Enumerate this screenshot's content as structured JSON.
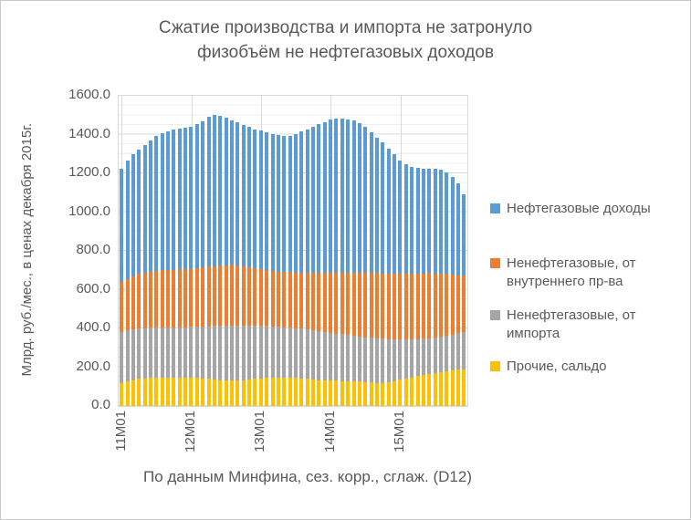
{
  "title": {
    "line1": "Сжатие производства и импорта не затронуло",
    "line2": "физобъём не нефтегазовых доходов"
  },
  "y_axis": {
    "title": "Млрд. руб./мес., в ценах декабря 2015г.",
    "tick_labels": [
      "0.0",
      "200.0",
      "400.0",
      "600.0",
      "800.0",
      "1000.0",
      "1200.0",
      "1400.0",
      "1600.0"
    ]
  },
  "x_axis": {
    "title": "По данным Минфина, сез. корр., сглаж. (D12)",
    "tick_labels": [
      "11M01",
      "12M01",
      "13M01",
      "14M01",
      "15M01"
    ]
  },
  "chart_data": {
    "type": "bar",
    "stacked": true,
    "title": "Сжатие производства и импорта не затронуло физобъём не нефтегазовых доходов",
    "ylabel": "Млрд. руб./мес., в ценах декабря 2015г.",
    "xlabel": "По данным Минфина, сез. корр., сглаж. (D12)",
    "ylim": [
      0,
      1600
    ],
    "y_major_step": 200,
    "y_minor_step": 50,
    "grid": true,
    "legend_position": "right",
    "categories": [
      "11M01",
      "11M02",
      "11M03",
      "11M04",
      "11M05",
      "11M06",
      "11M07",
      "11M08",
      "11M09",
      "11M10",
      "11M11",
      "11M12",
      "12M01",
      "12M02",
      "12M03",
      "12M04",
      "12M05",
      "12M06",
      "12M07",
      "12M08",
      "12M09",
      "12M10",
      "12M11",
      "12M12",
      "13M01",
      "13M02",
      "13M03",
      "13M04",
      "13M05",
      "13M06",
      "13M07",
      "13M08",
      "13M09",
      "13M10",
      "13M11",
      "13M12",
      "14M01",
      "14M02",
      "14M03",
      "14M04",
      "14M05",
      "14M06",
      "14M07",
      "14M08",
      "14M09",
      "14M10",
      "14M11",
      "14M12",
      "15M01",
      "15M02",
      "15M03",
      "15M04",
      "15M05",
      "15M06",
      "15M07",
      "15M08",
      "15M09",
      "15M10",
      "15M11",
      "15M12"
    ],
    "series": [
      {
        "name": "Нефтегазовые доходы",
        "color": "#5B9BD5",
        "values": [
          583,
          610,
          627,
          640,
          656,
          676,
          695,
          705,
          713,
          721,
          726,
          730,
          733,
          744,
          755,
          771,
          778,
          772,
          760,
          747,
          736,
          728,
          722,
          717,
          715,
          710,
          705,
          702,
          701,
          704,
          715,
          727,
          739,
          754,
          766,
          780,
          793,
          796,
          796,
          791,
          785,
          772,
          751,
          724,
          700,
          674,
          644,
          615,
          584,
          564,
          551,
          544,
          539,
          537,
          538,
          535,
          524,
          505,
          475,
          418
        ]
      },
      {
        "name": "Ненефтегазовые, от внутреннего пр-ва",
        "color": "#ED7D31",
        "values": [
          260,
          265,
          275,
          283,
          287,
          290,
          292,
          294,
          296,
          296,
          297,
          298,
          299,
          302,
          305,
          308,
          310,
          312,
          314,
          314,
          312,
          307,
          301,
          295,
          291,
          288,
          286,
          285,
          285,
          286,
          288,
          290,
          293,
          296,
          300,
          303,
          307,
          312,
          317,
          322,
          326,
          330,
          332,
          334,
          336,
          338,
          339,
          339,
          338,
          338,
          338,
          338,
          337,
          335,
          331,
          326,
          319,
          310,
          300,
          290
        ]
      },
      {
        "name": "Ненефтегазовые, от импорта",
        "color": "#A5A5A5",
        "values": [
          262,
          262,
          261,
          259,
          259,
          259,
          259,
          259,
          259,
          260,
          261,
          261,
          263,
          265,
          268,
          271,
          275,
          279,
          282,
          284,
          284,
          283,
          280,
          276,
          271,
          268,
          264,
          261,
          259,
          257,
          256,
          255,
          254,
          253,
          252,
          250,
          247,
          244,
          241,
          238,
          235,
          232,
          231,
          230,
          229,
          226,
          222,
          216,
          208,
          201,
          196,
          191,
          187,
          185,
          183,
          183,
          184,
          186,
          189,
          192
        ]
      },
      {
        "name": "Прочие, сальдо",
        "color": "#FFC000",
        "values": [
          120,
          128,
          134,
          140,
          143,
          145,
          146,
          147,
          147,
          147,
          146,
          146,
          145,
          144,
          142,
          140,
          137,
          134,
          131,
          130,
          130,
          132,
          135,
          139,
          143,
          145,
          147,
          148,
          148,
          147,
          145,
          143,
          140,
          137,
          134,
          132,
          131,
          130,
          129,
          128,
          127,
          126,
          124,
          122,
          120,
          120,
          122,
          127,
          135,
          142,
          148,
          154,
          160,
          165,
          170,
          174,
          178,
          182,
          186,
          190
        ]
      }
    ]
  }
}
